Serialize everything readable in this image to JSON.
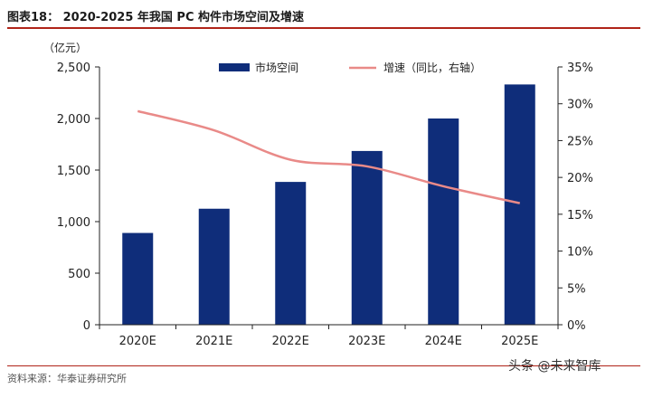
{
  "figure": {
    "title": "图表18：   2020-2025 年我国 PC 构件市场空间及增速",
    "source": "资料来源：华泰证券研究所",
    "watermark": "头条 @未来智库",
    "watermark_logo": "未来智库"
  },
  "chart_data": {
    "type": "bar",
    "categories": [
      "2020E",
      "2021E",
      "2022E",
      "2023E",
      "2024E",
      "2025E"
    ],
    "series": [
      {
        "name": "市场空间",
        "type": "bar",
        "axis": "left",
        "values": [
          890,
          1125,
          1385,
          1685,
          2000,
          2330
        ]
      },
      {
        "name": "增速（同比，右轴）",
        "type": "line",
        "axis": "right",
        "values": [
          29.0,
          26.4,
          22.4,
          21.5,
          18.8,
          16.5
        ]
      }
    ],
    "ylabel": "（亿元）",
    "ylim": [
      0,
      2500
    ],
    "yticks": [
      "0",
      "500",
      "1,000",
      "1,500",
      "2,000",
      "2,500"
    ],
    "y2lim": [
      0,
      35
    ],
    "y2ticks": [
      "0%",
      "5%",
      "10%",
      "15%",
      "20%",
      "25%",
      "30%",
      "35%"
    ],
    "colors": {
      "bar": "#0f2d7a",
      "line": "#e98a88",
      "axis": "#222222"
    }
  }
}
